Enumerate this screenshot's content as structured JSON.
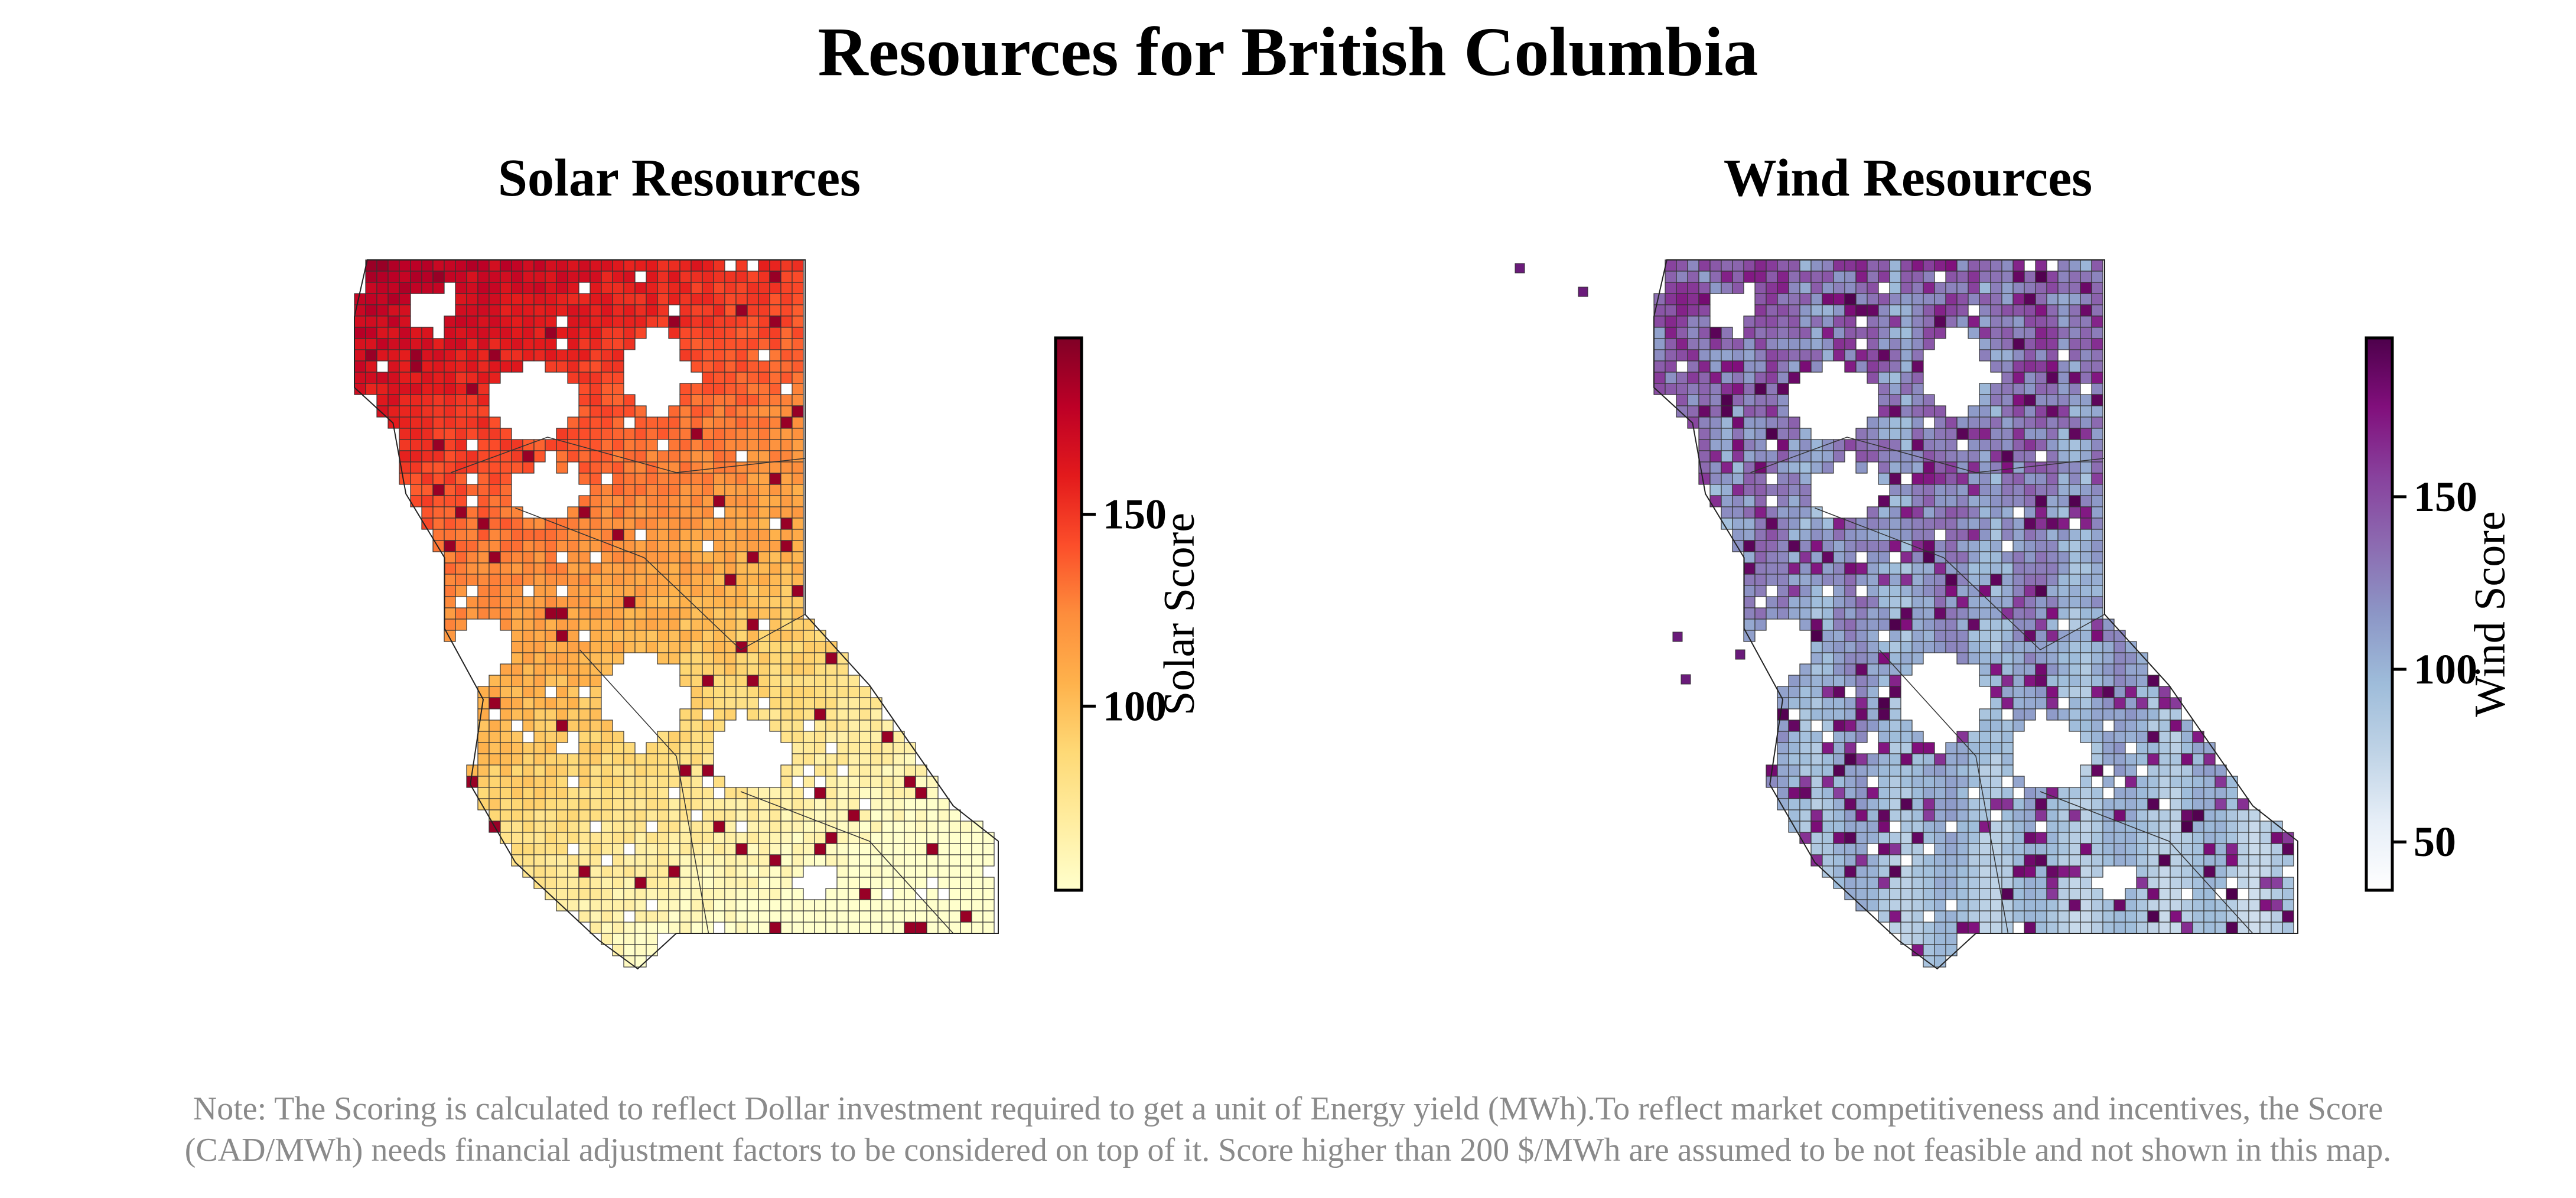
{
  "title": "Resources for British Columbia",
  "note": {
    "line1": "Note: The Scoring is calculated to reflect Dollar investment required to get a unit of Energy yield (MWh).To reflect market competitiveness and incentives, the Score",
    "line2": "(CAD/MWh) needs financial adjustment factors to be considered on top of it. Score higher than 200 $/MWh are assumed to be not feasible and not shown in this map."
  },
  "solar": {
    "title": "Solar Resources",
    "colorbar_label": "Solar Score",
    "colorbar_range": [
      52,
      196
    ],
    "colorbar_ticks": [
      "100",
      "150"
    ],
    "colormap": [
      "#ffffcc",
      "#ffeda0",
      "#fed976",
      "#feb24c",
      "#fd8d3c",
      "#fc4e2a",
      "#e31a1c",
      "#bd0026",
      "#800026"
    ]
  },
  "wind": {
    "title": "Wind Resources",
    "colorbar_label": "Wind Score",
    "colorbar_range": [
      36,
      196
    ],
    "colorbar_ticks": [
      "50",
      "100",
      "150"
    ],
    "colormap": [
      "#ffffff",
      "#e6eef7",
      "#bfd3e6",
      "#9ebcda",
      "#8c96c6",
      "#8c6bb1",
      "#88419d",
      "#810f7c",
      "#4d004b"
    ]
  }
}
